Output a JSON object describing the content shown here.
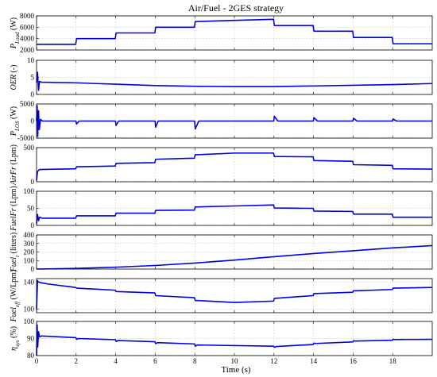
{
  "chart_data": {
    "type": "line",
    "title": "Air/Fuel - 2GES strategy",
    "xlabel": "Time (s)",
    "xlim": [
      0,
      20
    ],
    "xticks": [
      0,
      2,
      4,
      6,
      8,
      10,
      12,
      14,
      16,
      18
    ],
    "panels": [
      {
        "ylabel_main": "P",
        "ylabel_sub": "Load",
        "ylabel_unit": " (W)",
        "ylim": [
          2000,
          8000
        ],
        "yticks": [
          2000,
          4000,
          6000,
          8000
        ],
        "x": [
          0,
          1.98,
          2.02,
          3.98,
          4.02,
          5.98,
          6.02,
          7.98,
          8.02,
          10,
          11.98,
          12.02,
          13.98,
          14.02,
          15.98,
          16.02,
          17.98,
          18.02,
          20
        ],
        "y": [
          3000,
          3000,
          4000,
          4000,
          5000,
          5000,
          6000,
          6000,
          7000,
          7200,
          7400,
          6300,
          6300,
          5300,
          5300,
          4200,
          4200,
          3100,
          3100
        ]
      },
      {
        "ylabel_main": "OER",
        "ylabel_sub": "",
        "ylabel_unit": " (-)",
        "ylim": [
          0,
          10
        ],
        "yticks": [
          0,
          5,
          10
        ],
        "x": [
          0,
          0.05,
          0.1,
          0.15,
          0.25,
          2,
          4,
          6,
          8,
          10,
          12,
          14,
          16,
          18,
          20
        ],
        "y": [
          3.5,
          6.5,
          1.2,
          3.8,
          3.6,
          3.4,
          3.0,
          2.6,
          2.4,
          2.3,
          2.3,
          2.5,
          2.7,
          2.9,
          3.2
        ]
      },
      {
        "ylabel_main": "P",
        "ylabel_sub": "LOS",
        "ylabel_unit": " (W)",
        "ylim": [
          -5000,
          5000
        ],
        "yticks": [
          -5000,
          0,
          5000
        ],
        "x": [
          0,
          0.03,
          0.06,
          0.1,
          0.14,
          0.2,
          0.3,
          1.99,
          2.02,
          2.15,
          3.99,
          4.02,
          4.15,
          5.99,
          6.02,
          6.15,
          7.99,
          8.02,
          8.2,
          11.99,
          12.02,
          12.2,
          13.99,
          14.02,
          14.2,
          15.99,
          16.02,
          16.2,
          17.99,
          18.02,
          18.2,
          20
        ],
        "y": [
          0,
          4500,
          -4500,
          3000,
          -2500,
          500,
          0,
          0,
          -900,
          0,
          0,
          -1300,
          0,
          0,
          -1800,
          0,
          0,
          -2300,
          0,
          0,
          1400,
          0,
          0,
          1000,
          0,
          0,
          800,
          0,
          0,
          600,
          0,
          0
        ]
      },
      {
        "ylabel_main": "AirFr",
        "ylabel_sub": "",
        "ylabel_unit": " (Lpm)",
        "ylim": [
          0,
          500
        ],
        "yticks": [
          0,
          500
        ],
        "x": [
          0,
          0.05,
          0.15,
          1.98,
          2.02,
          3.98,
          4.02,
          5.98,
          6.02,
          7.98,
          8.02,
          10,
          11.98,
          12.02,
          13.98,
          14.02,
          15.98,
          16.02,
          17.98,
          18.02,
          20
        ],
        "y": [
          20,
          150,
          180,
          190,
          220,
          230,
          270,
          280,
          330,
          345,
          395,
          420,
          420,
          370,
          365,
          310,
          300,
          250,
          240,
          190,
          185
        ]
      },
      {
        "ylabel_main": "FuelFr",
        "ylabel_sub": "",
        "ylabel_unit": " (Lpm)",
        "ylim": [
          0,
          100
        ],
        "yticks": [
          0,
          50,
          100
        ],
        "x": [
          0,
          0.05,
          0.1,
          0.15,
          0.3,
          1.98,
          2.02,
          3.98,
          4.02,
          5.98,
          6.02,
          7.98,
          8.02,
          10,
          11.98,
          12.02,
          13.98,
          14.02,
          15.98,
          16.02,
          17.98,
          18.02,
          20
        ],
        "y": [
          5,
          32,
          14,
          24,
          21,
          21,
          28,
          28,
          36,
          36,
          44,
          45,
          54,
          57,
          60,
          51,
          50,
          42,
          41,
          33,
          33,
          24,
          24
        ]
      },
      {
        "ylabel_main": "Fuel",
        "ylabel_sub": "t",
        "ylabel_unit": " (liters)",
        "ylim": [
          0,
          400
        ],
        "yticks": [
          0,
          100,
          200,
          300,
          400
        ],
        "x": [
          0,
          2,
          4,
          6,
          8,
          10,
          12,
          14,
          16,
          18,
          20
        ],
        "y": [
          0,
          8,
          22,
          42,
          70,
          105,
          145,
          182,
          215,
          248,
          275
        ]
      },
      {
        "ylabel_main": "Fuel",
        "ylabel_sub": "eff",
        "ylabel_unit": " (W/Lpm)",
        "ylim": [
          95,
          145
        ],
        "yticks": [
          100,
          140
        ],
        "x": [
          0,
          0.05,
          0.1,
          0.2,
          0.6,
          1.98,
          2.02,
          3.98,
          4.02,
          5.98,
          6.02,
          7.98,
          8.02,
          10,
          11.98,
          12.02,
          13.98,
          14.02,
          15.98,
          16.02,
          17.98,
          18.02,
          20
        ],
        "y": [
          100,
          142,
          140,
          139,
          137,
          132,
          131,
          128,
          126,
          124,
          120,
          117,
          113,
          110,
          112,
          116,
          120,
          123,
          125,
          127,
          129,
          131,
          132
        ]
      },
      {
        "ylabel_main": "η",
        "ylabel_sub": "sys",
        "ylabel_unit": " (%)",
        "ylim": [
          80,
          100
        ],
        "yticks": [
          80,
          90,
          100
        ],
        "x": [
          0,
          0.03,
          0.06,
          0.1,
          0.15,
          0.25,
          1.99,
          2.02,
          2.12,
          3.99,
          4.02,
          4.12,
          5.99,
          6.02,
          6.12,
          7.99,
          8.02,
          8.12,
          11.99,
          12.02,
          12.12,
          13.99,
          14.02,
          14.12,
          15.99,
          16.02,
          16.12,
          17.99,
          18.02,
          18.12,
          20
        ],
        "y": [
          80,
          98,
          85,
          94,
          91,
          91.5,
          90.5,
          89.5,
          90,
          89.3,
          88.3,
          88.8,
          88.1,
          87,
          87.6,
          86.8,
          85.5,
          86.2,
          85.5,
          84.8,
          85.3,
          86.5,
          87.3,
          87.1,
          88,
          88.7,
          88.5,
          89,
          89.6,
          89.4,
          89.5
        ]
      }
    ]
  }
}
